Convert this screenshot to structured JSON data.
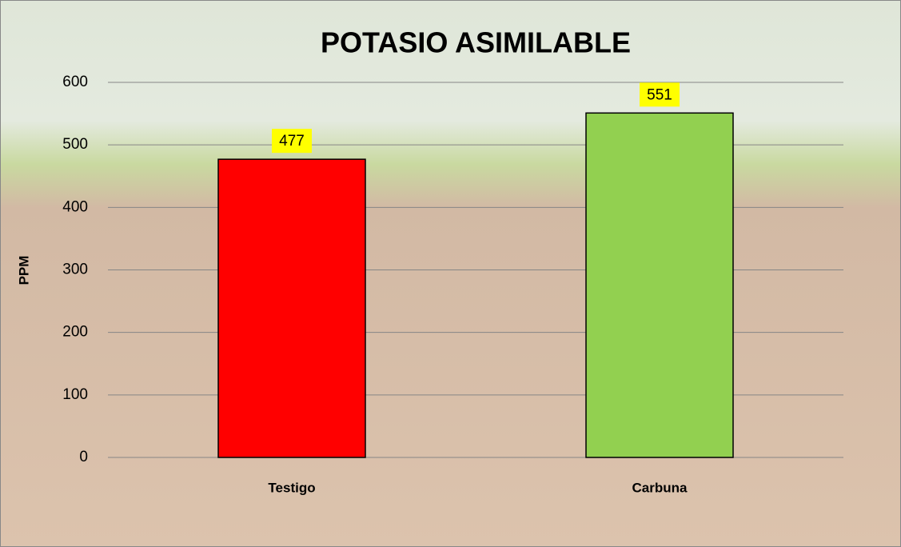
{
  "chart_data": {
    "type": "bar",
    "title": "POTASIO ASIMILABLE",
    "y_label": "PPM",
    "categories": [
      "Testigo",
      "Carbuna"
    ],
    "values": [
      477,
      551
    ],
    "colors": [
      "#ff0000",
      "#92d050"
    ],
    "ylim": [
      0,
      600
    ],
    "yticks": [
      0,
      100,
      200,
      300,
      400,
      500,
      600
    ],
    "grid": true
  }
}
